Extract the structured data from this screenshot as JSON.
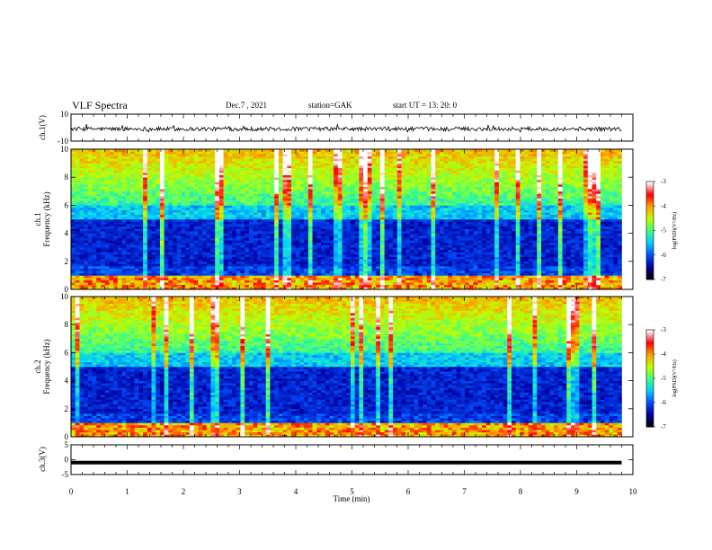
{
  "header": {
    "title": "VLF Spectra",
    "date": "Dec.7 , 2021",
    "station": "station=GAK",
    "start": "start UT = 13: 20: 0"
  },
  "colorbar": {
    "label": "log(PSD)(V²/Hz)",
    "ticks": [
      "-3",
      "-4",
      "-5",
      "-6",
      "-7"
    ],
    "range": [
      -7,
      -3
    ],
    "colors": [
      "#000000",
      "#0000a0",
      "#0050ff",
      "#00d0ff",
      "#40ff80",
      "#c0ff00",
      "#ffa000",
      "#ff0000",
      "#ffffff"
    ]
  },
  "chart_data": [
    {
      "type": "line",
      "name": "ch1-waveform",
      "ylabel": "ch.1(V)",
      "ylim": [
        -10,
        10
      ],
      "yticks": [
        "10",
        "-10"
      ],
      "xlim": [
        0,
        10
      ],
      "description_values": {
        "mean": -1,
        "noise_amplitude": 1.5
      }
    },
    {
      "type": "heatmap",
      "name": "ch1-spectrogram",
      "ylabel": "ch.1 Frequency (kHz)",
      "ylim": [
        0,
        10
      ],
      "yticks": [
        "0",
        "2",
        "4",
        "6",
        "8",
        "10"
      ],
      "xlim": [
        0,
        10
      ],
      "zlim": [
        -7,
        -3
      ]
    },
    {
      "type": "heatmap",
      "name": "ch2-spectrogram",
      "ylabel": "ch.2 Frequency (kHz)",
      "ylim": [
        0,
        10
      ],
      "yticks": [
        "0",
        "2",
        "4",
        "6",
        "8",
        "10"
      ],
      "xlim": [
        0,
        10
      ],
      "zlim": [
        -7,
        -3
      ]
    },
    {
      "type": "line",
      "name": "ch3-waveform",
      "ylabel": "ch.3(V)",
      "ylim": [
        -5,
        5
      ],
      "yticks": [
        "5",
        "0",
        "-5"
      ],
      "xlim": [
        0,
        10
      ],
      "x": [
        0,
        9.8
      ],
      "y": [
        -1,
        -1
      ],
      "xlabel": "Time (min)",
      "xticks": [
        "0",
        "1",
        "2",
        "3",
        "4",
        "5",
        "6",
        "7",
        "8",
        "9",
        "10"
      ]
    }
  ]
}
